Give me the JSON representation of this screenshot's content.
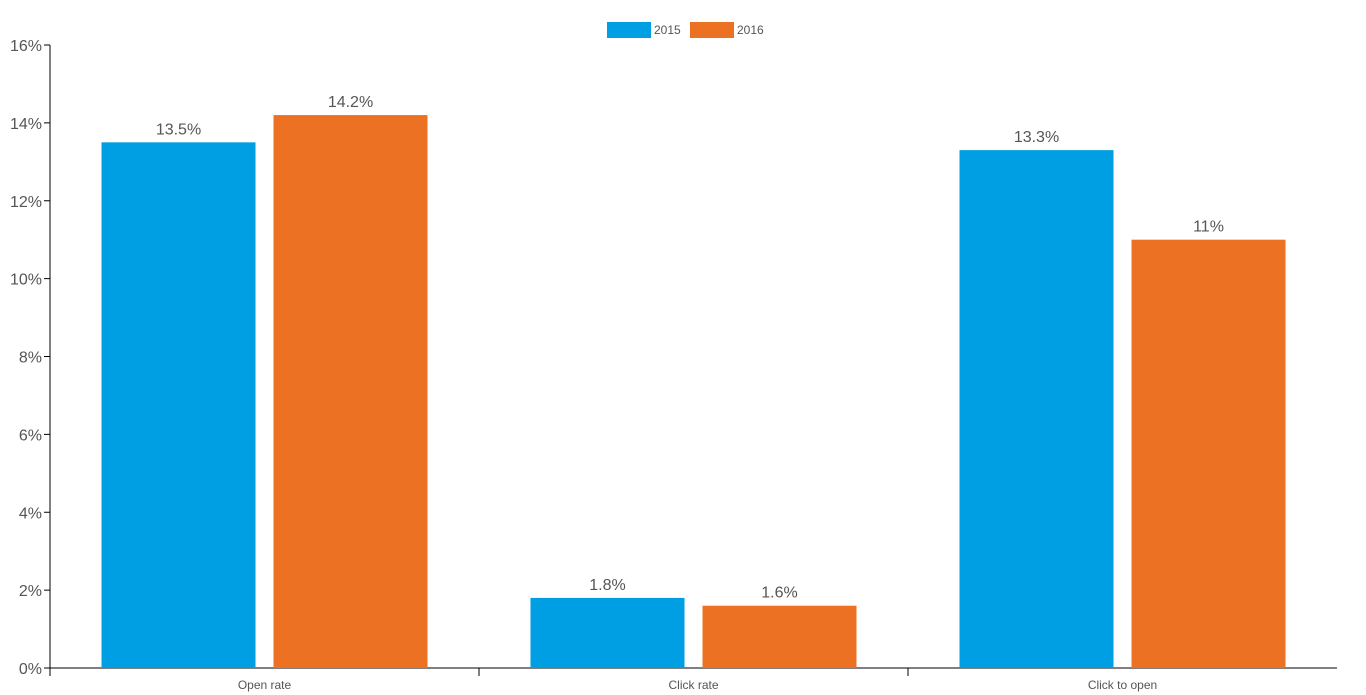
{
  "chart_data": {
    "type": "bar",
    "categories": [
      "Open rate",
      "Click rate",
      "Click to open"
    ],
    "series": [
      {
        "name": "2015",
        "color": "#009fe3",
        "values": [
          13.5,
          1.8,
          13.3
        ],
        "labels": [
          "13.5%",
          "1.8%",
          "13.3%"
        ]
      },
      {
        "name": "2016",
        "color": "#ed7123",
        "values": [
          14.2,
          1.6,
          11
        ],
        "labels": [
          "14.2%",
          "1.6%",
          "11%"
        ]
      }
    ],
    "ylim": [
      0,
      16
    ],
    "yticks": [
      0,
      2,
      4,
      6,
      8,
      10,
      12,
      14,
      16
    ],
    "ytick_labels": [
      "0%",
      "2%",
      "4%",
      "6%",
      "8%",
      "10%",
      "12%",
      "14%",
      "16%"
    ],
    "title": "",
    "xlabel": "",
    "ylabel": "",
    "grid": false,
    "legend": "top-center"
  }
}
